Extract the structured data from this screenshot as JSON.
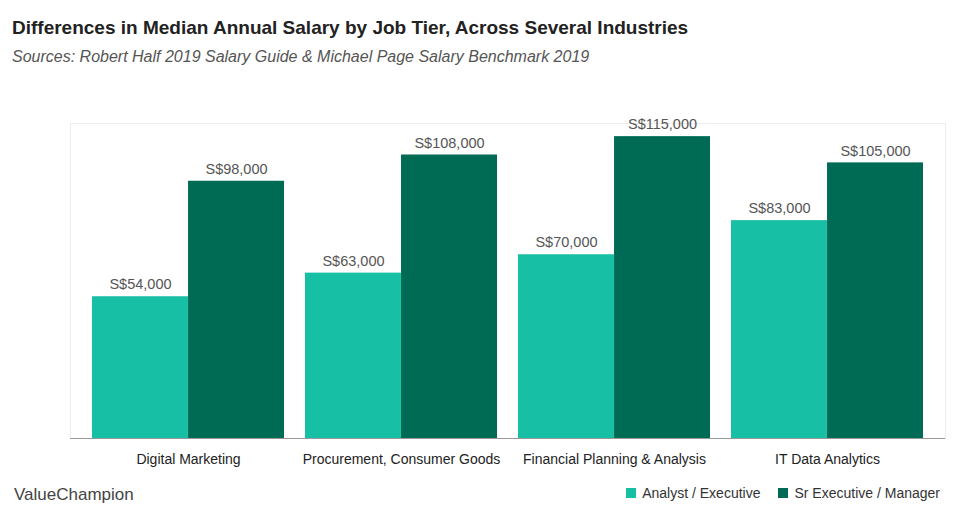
{
  "chart_data": {
    "type": "bar",
    "title": "Differences in Median Annual Salary by Job Tier, Across Several Industries",
    "subtitle": "Sources: Robert Half 2019 Salary Guide & Michael Page Salary Benchmark 2019",
    "annotations": [
      "ValueChampion"
    ],
    "categories": [
      "Digital Marketing",
      "Procurement, Consumer Goods",
      "Financial Planning & Analysis",
      "IT Data Analytics"
    ],
    "series": [
      {
        "name": "Analyst / Executive",
        "color": "#17bfa4",
        "values": [
          54000,
          63000,
          70000,
          83000
        ],
        "value_labels": [
          "S$54,000",
          "S$63,000",
          "S$70,000",
          "S$83,000"
        ]
      },
      {
        "name": "Sr Executive / Manager",
        "color": "#006b55",
        "values": [
          98000,
          108000,
          115000,
          105000
        ],
        "value_labels": [
          "S$98,000",
          "S$108,000",
          "S$115,000",
          "S$105,000"
        ]
      }
    ],
    "ylim": [
      0,
      120000
    ],
    "yticks": [
      0
    ],
    "grid": false,
    "legend": "bottom-right",
    "data_labels": true,
    "tick_labels": "x"
  }
}
